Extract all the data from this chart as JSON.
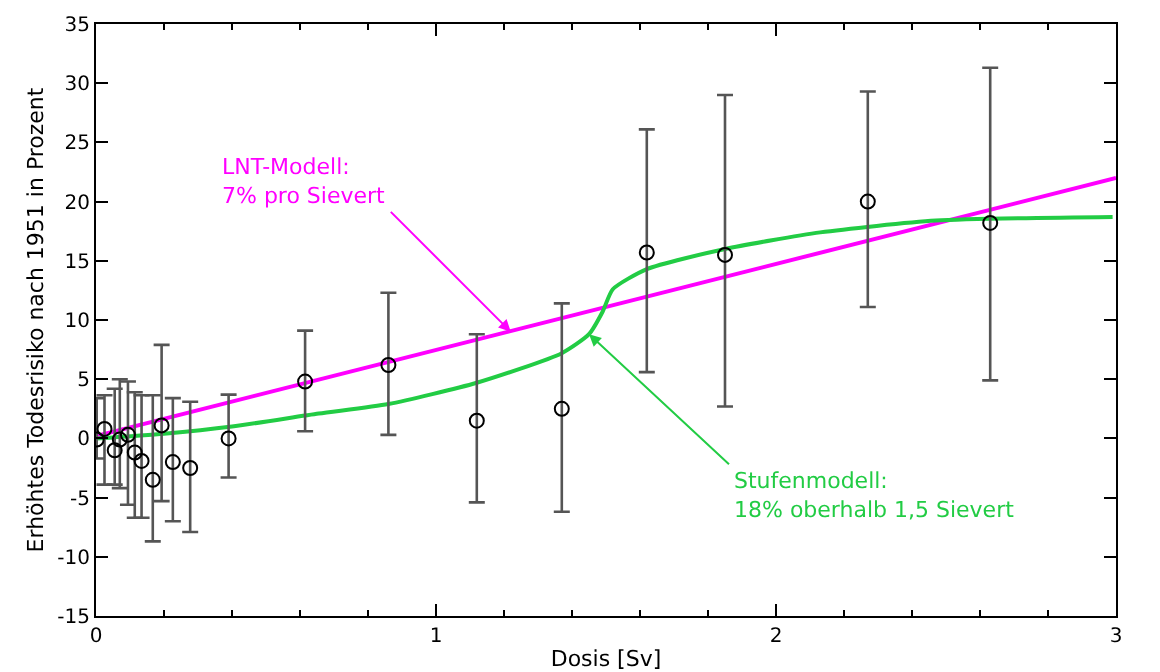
{
  "chart_data": {
    "type": "scatter",
    "xlabel": "Dosis [Sv]",
    "ylabel": "Erhöhtes Todesrisiko nach 1951 in Prozent",
    "xlim": [
      0,
      3
    ],
    "xticks": [
      0,
      1,
      2,
      3
    ],
    "ylim": [
      -15,
      35
    ],
    "yticks": [
      -15,
      -10,
      -5,
      0,
      5,
      10,
      15,
      20,
      25,
      30,
      35
    ],
    "grid": false,
    "line_style": "solid",
    "series": [
      {
        "marker": "circle",
        "color": "#000000",
        "x": [
          0.002,
          0.025,
          0.055,
          0.07,
          0.094,
          0.114,
          0.134,
          0.167,
          0.193,
          0.226,
          0.277,
          0.39,
          0.615,
          0.86,
          1.12,
          1.37,
          1.62,
          1.85,
          2.27,
          2.63
        ],
        "values": [
          -0.1,
          0.8,
          -1.0,
          -0.1,
          0.3,
          -1.2,
          -1.9,
          -3.5,
          1.1,
          -2.0,
          -2.5,
          0,
          4.8,
          6.2,
          1.5,
          2.5,
          15.7,
          15.5,
          20,
          18.2
        ],
        "errors": [
          [
            -1.7,
            3.4
          ],
          [
            -3.9,
            3.65
          ],
          [
            -3.9,
            4.2
          ],
          [
            -4.2,
            5.0
          ],
          [
            -5.6,
            4.8
          ],
          [
            -6.7,
            3.9
          ],
          [
            -6.7,
            3.65
          ],
          [
            -8.7,
            3.65
          ],
          [
            -5.3,
            7.9
          ],
          [
            -7.0,
            3.4
          ],
          [
            -7.9,
            3.1
          ],
          [
            -3.3,
            3.7
          ],
          [
            0.6,
            9.1
          ],
          [
            0.3,
            12.3
          ],
          [
            -5.4,
            8.8
          ],
          [
            -6.2,
            11.4
          ],
          [
            5.6,
            26.1
          ],
          [
            2.7,
            29.0
          ],
          [
            11.1,
            29.3
          ],
          [
            4.9,
            31.3
          ]
        ]
      },
      {
        "type": "line",
        "marker": "none",
        "color": "#ff00ff",
        "x": [
          0,
          3
        ],
        "values": [
          0.2,
          22
        ]
      },
      {
        "type": "line",
        "marker": "none",
        "color": "#22cc44",
        "x": [
          0,
          0.2,
          0.4,
          0.655,
          0.86,
          1.12,
          1.37,
          1.45,
          1.49,
          1.52,
          1.62,
          1.85,
          2.13,
          2.47,
          2.99
        ],
        "values": [
          0,
          0.4,
          1.0,
          2.1,
          2.9,
          4.7,
          7.2,
          8.8,
          10.7,
          12.6,
          14.3,
          16.0,
          17.4,
          18.4,
          18.7
        ]
      }
    ],
    "annotations": [
      {
        "text": "LNT-Modell:\n7% pro Sievert",
        "x": 1.22,
        "y": 9.0
      },
      {
        "text": "Stufenmodell:\n18% oberhalb 1,5 Sievert",
        "x": 1.45,
        "y": 8.8
      }
    ]
  }
}
